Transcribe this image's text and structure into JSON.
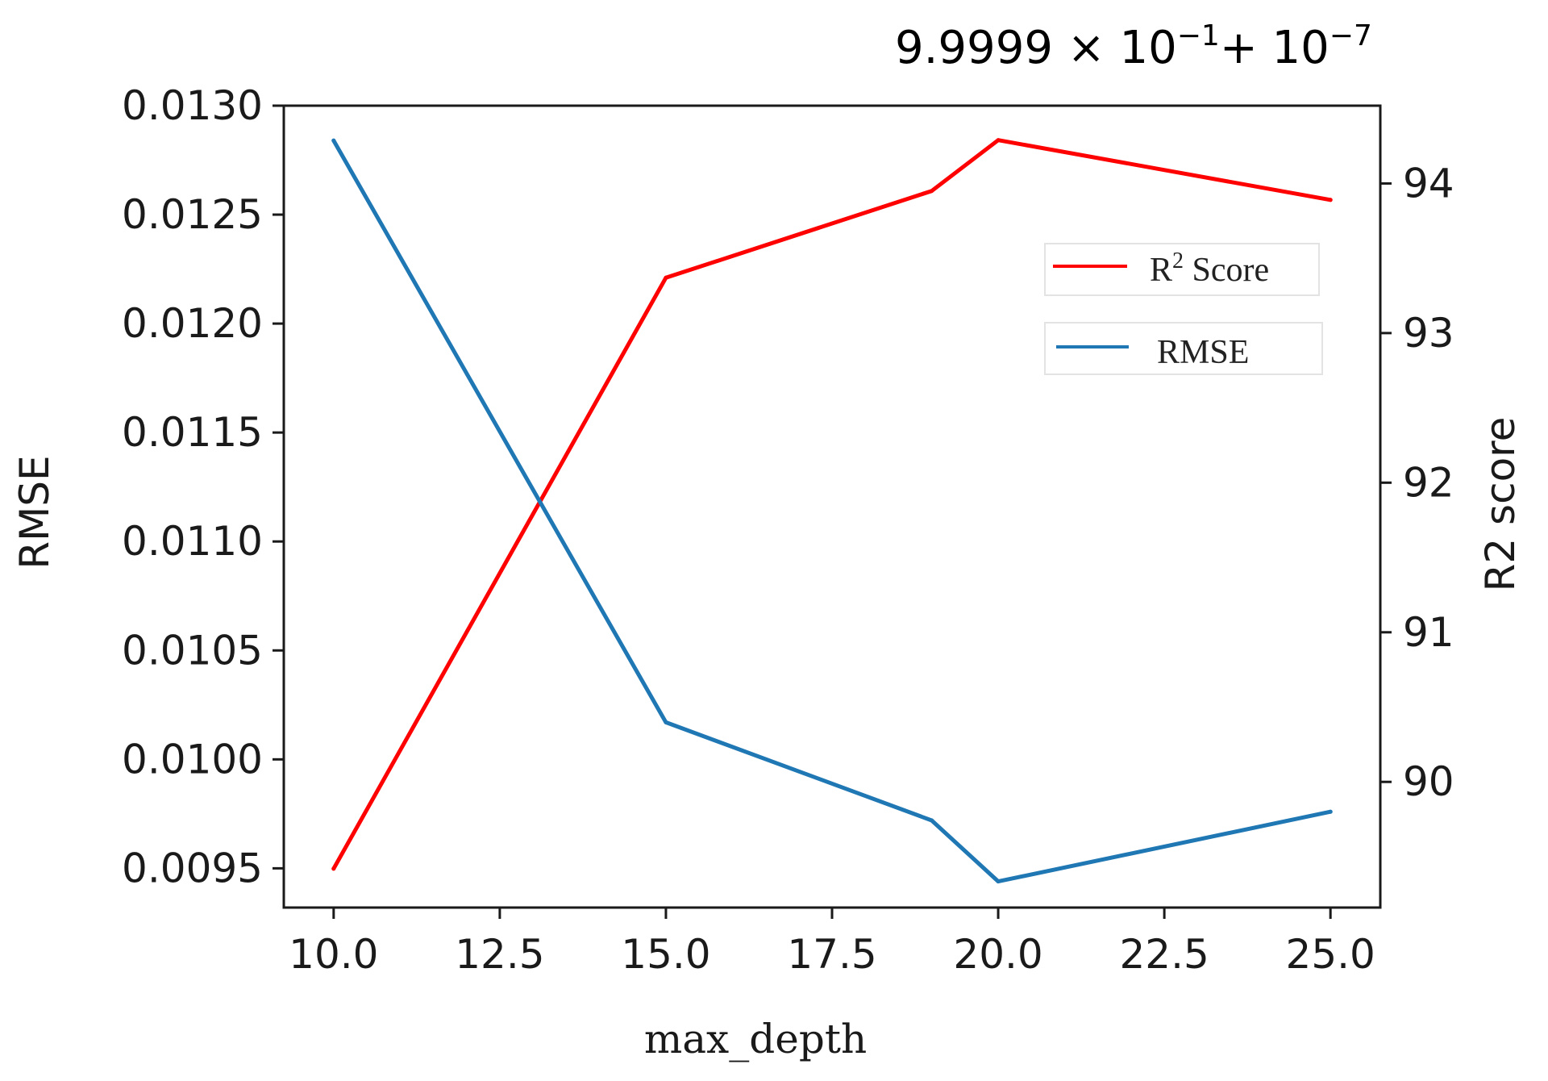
{
  "chart_data": {
    "type": "line",
    "xlabel": "max_depth",
    "ylabel_left": "RMSE",
    "ylabel_right": "R2 score",
    "offset_text": {
      "mantissa": "9.9999 × 10",
      "exp1": "−1",
      "plus": "+ 10",
      "exp2": "−7"
    },
    "xlim": [
      9.25,
      25.75
    ],
    "ylim_left": [
      0.00932,
      0.013
    ],
    "ylim_right": [
      89.16,
      94.52
    ],
    "x_ticks": [
      10.0,
      12.5,
      15.0,
      17.5,
      20.0,
      22.5,
      25.0
    ],
    "x_tick_labels": [
      "10.0",
      "12.5",
      "15.0",
      "17.5",
      "20.0",
      "22.5",
      "25.0"
    ],
    "left_ticks": [
      0.0095,
      0.01,
      0.0105,
      0.011,
      0.0115,
      0.012,
      0.0125,
      0.013
    ],
    "left_tick_labels": [
      "0.0095",
      "0.0100",
      "0.0105",
      "0.0110",
      "0.0115",
      "0.0120",
      "0.0125",
      "0.0130"
    ],
    "right_ticks": [
      90,
      91,
      92,
      93,
      94
    ],
    "right_tick_labels": [
      "90",
      "91",
      "92",
      "93",
      "94"
    ],
    "series": [
      {
        "name": "R² Score",
        "axis": "right",
        "color": "#ff0000",
        "x": [
          10,
          15,
          19,
          20,
          25
        ],
        "values": [
          89.42,
          93.37,
          93.95,
          94.29,
          93.89
        ]
      },
      {
        "name": "RMSE",
        "axis": "left",
        "color": "#1f77b4",
        "x": [
          10,
          15,
          19,
          20,
          25
        ],
        "values": [
          0.01284,
          0.01017,
          0.00972,
          0.00944,
          0.00976
        ]
      }
    ],
    "legend": [
      {
        "label_base": "R",
        "label_sup": "2",
        "label_rest": " Score",
        "color": "#ff0000"
      },
      {
        "label_base": "RMSE",
        "label_sup": "",
        "label_rest": "",
        "color": "#1f77b4"
      }
    ]
  }
}
